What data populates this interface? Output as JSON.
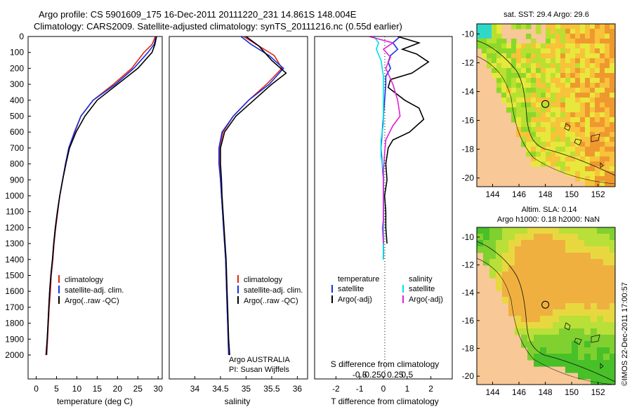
{
  "header": {
    "line1": "Argo profile: CS 5901609_175 16-Dec-2011 20111220_231 14.861S 148.004E",
    "line2": "Climatology: CARS2009. Satellite-adjusted climatology: synTS_20111216.nc (0.55d earlier)"
  },
  "colors": {
    "climatology": "#e0261a",
    "satellite": "#1a2ee0",
    "argo": "#000000",
    "sat_sal": "#00e0e8",
    "argo_sal": "#e020d8",
    "land": "#f8c896"
  },
  "chart_data": [
    {
      "type": "line",
      "name": "temperature-profile",
      "xlabel": "temperature (deg C)",
      "ylabel": "",
      "xlim": [
        -2,
        31
      ],
      "ylim": [
        2150,
        0
      ],
      "xticks": [
        0,
        5,
        10,
        15,
        20,
        25,
        30
      ],
      "yticks": [
        0,
        100,
        200,
        300,
        400,
        500,
        600,
        700,
        800,
        900,
        1000,
        1100,
        1200,
        1300,
        1400,
        1500,
        1600,
        1700,
        1800,
        1900,
        2000
      ],
      "series": [
        {
          "name": "climatology",
          "color": "#e0261a",
          "points": [
            [
              29.3,
              0
            ],
            [
              28.5,
              50
            ],
            [
              26.5,
              100
            ],
            [
              23.5,
              200
            ],
            [
              19,
              300
            ],
            [
              14,
              400
            ],
            [
              11,
              500
            ],
            [
              9.5,
              600
            ],
            [
              8,
              700
            ],
            [
              7.3,
              800
            ],
            [
              6.5,
              900
            ],
            [
              5.8,
              1000
            ],
            [
              5.3,
              1100
            ],
            [
              4.8,
              1200
            ],
            [
              4.4,
              1300
            ],
            [
              4.1,
              1400
            ],
            [
              3.7,
              1500
            ],
            [
              3.5,
              1600
            ],
            [
              3.2,
              1700
            ],
            [
              3,
              1800
            ],
            [
              2.8,
              1900
            ],
            [
              2.6,
              2000
            ]
          ]
        },
        {
          "name": "satellite-adj. clim.",
          "color": "#1a2ee0",
          "points": [
            [
              29.5,
              0
            ],
            [
              29,
              50
            ],
            [
              27.5,
              100
            ],
            [
              24,
              200
            ],
            [
              19.5,
              300
            ],
            [
              14,
              400
            ],
            [
              11,
              500
            ],
            [
              9.4,
              600
            ],
            [
              8,
              700
            ],
            [
              7.2,
              800
            ],
            [
              6.5,
              900
            ],
            [
              5.8,
              1000
            ],
            [
              5.2,
              1100
            ],
            [
              4.7,
              1200
            ],
            [
              4.3,
              1300
            ],
            [
              4,
              1400
            ],
            [
              3.6,
              1500
            ],
            [
              3.3,
              1600
            ],
            [
              3.1,
              1700
            ],
            [
              2.9,
              1800
            ],
            [
              2.7,
              1900
            ],
            [
              2.5,
              2000
            ]
          ]
        },
        {
          "name": "Argo(..raw -QC)",
          "color": "#000000",
          "points": [
            [
              29.6,
              0
            ],
            [
              29.2,
              50
            ],
            [
              28.5,
              100
            ],
            [
              25,
              200
            ],
            [
              20,
              300
            ],
            [
              15,
              400
            ],
            [
              12,
              500
            ],
            [
              9.8,
              600
            ],
            [
              8.2,
              700
            ],
            [
              7.3,
              800
            ],
            [
              6.5,
              900
            ],
            [
              5.8,
              1000
            ],
            [
              5.2,
              1100
            ],
            [
              4.7,
              1200
            ],
            [
              4.3,
              1300
            ],
            [
              4,
              1400
            ],
            [
              3.6,
              1500
            ],
            [
              3.3,
              1600
            ],
            [
              3.1,
              1700
            ],
            [
              2.9,
              1800
            ],
            [
              2.7,
              1900
            ],
            [
              2.4,
              2000
            ]
          ]
        }
      ],
      "legend": [
        "climatology",
        "satellite-adj. clim.",
        "Argo(..raw -QC)"
      ]
    },
    {
      "type": "line",
      "name": "salinity-profile",
      "xlabel": "salinity",
      "xlim": [
        33.5,
        36.2
      ],
      "ylim": [
        2150,
        0
      ],
      "xticks": [
        34,
        34.5,
        35,
        35.5,
        36
      ],
      "series": [
        {
          "name": "climatology",
          "color": "#e0261a",
          "points": [
            [
              34.95,
              0
            ],
            [
              35.2,
              50
            ],
            [
              35.55,
              120
            ],
            [
              35.7,
              200
            ],
            [
              35.4,
              300
            ],
            [
              35.05,
              400
            ],
            [
              34.75,
              500
            ],
            [
              34.55,
              600
            ],
            [
              34.48,
              700
            ],
            [
              34.48,
              800
            ],
            [
              34.5,
              900
            ],
            [
              34.52,
              1000
            ],
            [
              34.54,
              1100
            ],
            [
              34.56,
              1200
            ],
            [
              34.58,
              1300
            ],
            [
              34.6,
              1400
            ],
            [
              34.61,
              1500
            ],
            [
              34.62,
              1600
            ],
            [
              34.63,
              1700
            ],
            [
              34.64,
              1800
            ],
            [
              34.65,
              1900
            ],
            [
              34.66,
              2000
            ]
          ]
        },
        {
          "name": "satellite-adj. clim.",
          "color": "#1a2ee0",
          "points": [
            [
              34.9,
              0
            ],
            [
              35.1,
              50
            ],
            [
              35.45,
              120
            ],
            [
              35.73,
              200
            ],
            [
              35.45,
              300
            ],
            [
              35.05,
              400
            ],
            [
              34.75,
              500
            ],
            [
              34.53,
              600
            ],
            [
              34.47,
              700
            ],
            [
              34.47,
              800
            ],
            [
              34.5,
              900
            ],
            [
              34.52,
              1000
            ],
            [
              34.54,
              1100
            ],
            [
              34.56,
              1200
            ],
            [
              34.58,
              1300
            ],
            [
              34.6,
              1400
            ],
            [
              34.61,
              1500
            ],
            [
              34.62,
              1600
            ],
            [
              34.63,
              1700
            ],
            [
              34.64,
              1800
            ],
            [
              34.65,
              1900
            ],
            [
              34.66,
              2000
            ]
          ]
        },
        {
          "name": "Argo(..raw -QC)",
          "color": "#000000",
          "points": [
            [
              35,
              0
            ],
            [
              35.25,
              60
            ],
            [
              35.5,
              150
            ],
            [
              35.78,
              230
            ],
            [
              35.5,
              300
            ],
            [
              35.15,
              400
            ],
            [
              34.8,
              500
            ],
            [
              34.58,
              600
            ],
            [
              34.5,
              700
            ],
            [
              34.5,
              800
            ],
            [
              34.52,
              900
            ],
            [
              34.53,
              1000
            ],
            [
              34.55,
              1100
            ],
            [
              34.57,
              1200
            ],
            [
              34.59,
              1300
            ],
            [
              34.61,
              1400
            ],
            [
              34.62,
              1500
            ],
            [
              34.63,
              1600
            ],
            [
              34.64,
              1700
            ],
            [
              34.65,
              1800
            ],
            [
              34.66,
              1900
            ],
            [
              34.68,
              2000
            ]
          ]
        }
      ],
      "legend": [
        "climatology",
        "satellite-adj. clim.",
        "Argo(..raw -QC)"
      ],
      "annotation": [
        "Argo AUSTRALIA",
        "PI: Susan Wijffels"
      ]
    },
    {
      "type": "line",
      "name": "difference-profile",
      "xlabel": "T difference from climatology",
      "xlabel_top": "S difference from climatology",
      "xlim": [
        -2.9,
        2.9
      ],
      "ylim": [
        2150,
        0
      ],
      "xticks": [
        -2,
        -1,
        0,
        1,
        2
      ],
      "sticks": [
        [
          -0.5,
          "-0.5"
        ],
        [
          -0.25,
          "-0.25"
        ],
        [
          0,
          "0"
        ],
        [
          0.25,
          "0.25"
        ],
        [
          0.5,
          "0.5"
        ]
      ],
      "series": [
        {
          "name": "temperature satellite",
          "color": "#1a2ee0",
          "points": [
            [
              0.7,
              0
            ],
            [
              0.4,
              40
            ],
            [
              0.6,
              80
            ],
            [
              0.3,
              120
            ],
            [
              0.2,
              160
            ],
            [
              0.3,
              200
            ],
            [
              0.1,
              250
            ],
            [
              0.1,
              300
            ],
            [
              0.05,
              400
            ],
            [
              0,
              500
            ],
            [
              -0.05,
              600
            ],
            [
              -0.1,
              700
            ],
            [
              -0.05,
              800
            ],
            [
              0,
              900
            ],
            [
              0,
              1000
            ],
            [
              0,
              1100
            ],
            [
              0,
              1200
            ],
            [
              0,
              1300
            ],
            [
              0,
              1400
            ]
          ]
        },
        {
          "name": "temperature Argo(-adj)",
          "color": "#000000",
          "points": [
            [
              0.6,
              0
            ],
            [
              1.5,
              40
            ],
            [
              0.8,
              80
            ],
            [
              1.4,
              110
            ],
            [
              1.9,
              160
            ],
            [
              1.2,
              230
            ],
            [
              0.3,
              270
            ],
            [
              0.2,
              320
            ],
            [
              0.9,
              400
            ],
            [
              1.5,
              450
            ],
            [
              1.7,
              520
            ],
            [
              1.1,
              600
            ],
            [
              0.4,
              650
            ],
            [
              0.2,
              700
            ],
            [
              0.1,
              800
            ],
            [
              0.15,
              900
            ],
            [
              0.05,
              1000
            ],
            [
              0.1,
              1100
            ],
            [
              0.1,
              1200
            ],
            [
              0.15,
              1300
            ]
          ]
        },
        {
          "name": "salinity satellite",
          "color": "#00e0e8",
          "points": [
            [
              -0.2,
              0
            ],
            [
              -0.1,
              40
            ],
            [
              -0.15,
              80
            ],
            [
              -0.05,
              150
            ],
            [
              0,
              250
            ],
            [
              0,
              350
            ],
            [
              0,
              450
            ],
            [
              0,
              550
            ],
            [
              -0.05,
              650
            ],
            [
              -0.05,
              750
            ],
            [
              0,
              850
            ],
            [
              0,
              950
            ],
            [
              0,
              1050
            ],
            [
              0,
              1150
            ],
            [
              0,
              1250
            ],
            [
              0,
              1350
            ],
            [
              0,
              1400
            ]
          ]
        },
        {
          "name": "salinity Argo(-adj)",
          "color": "#e020d8",
          "points": [
            [
              -0.3,
              0
            ],
            [
              0.2,
              40
            ],
            [
              0,
              80
            ],
            [
              0.15,
              130
            ],
            [
              0.05,
              200
            ],
            [
              0.2,
              300
            ],
            [
              0.3,
              400
            ],
            [
              0.35,
              500
            ],
            [
              0.2,
              560
            ],
            [
              0.05,
              650
            ],
            [
              0.02,
              750
            ],
            [
              0,
              850
            ],
            [
              0,
              950
            ],
            [
              0,
              1050
            ],
            [
              0,
              1150
            ],
            [
              -0.02,
              1200
            ],
            [
              0,
              1300
            ]
          ]
        }
      ],
      "legend_temp_heading": "temperature",
      "legend_sal_heading": "salinity",
      "legend_items": [
        "satellite",
        "Argo(-adj)",
        "satellite",
        "Argo(-adj)"
      ]
    },
    {
      "type": "heatmap",
      "name": "sst-map",
      "title": "sat. SST: 29.4  Argo: 29.6",
      "xlim": [
        142.8,
        153.3
      ],
      "ylim": [
        -20.6,
        -9.3
      ],
      "xticks": [
        "144",
        "146",
        "148",
        "150",
        "152"
      ],
      "yticks": [
        "-10",
        "-12",
        "-14",
        "-16",
        "-18",
        "-20"
      ],
      "float_position": [
        148.004,
        -14.861
      ]
    },
    {
      "type": "heatmap",
      "name": "sla-map",
      "title": "Altim. SLA: 0.14",
      "subtitle": "Argo h1000: 0.18 h2000: NaN",
      "xlim": [
        142.8,
        153.3
      ],
      "ylim": [
        -20.6,
        -9.3
      ],
      "xticks": [
        "144",
        "146",
        "148",
        "150",
        "152"
      ],
      "yticks": [
        "-10",
        "-12",
        "-14",
        "-16",
        "-18",
        "-20"
      ],
      "float_position": [
        148.004,
        -14.861
      ]
    }
  ],
  "footer": {
    "credit": "©IMOS 22-Dec-2011 17:00:57"
  }
}
